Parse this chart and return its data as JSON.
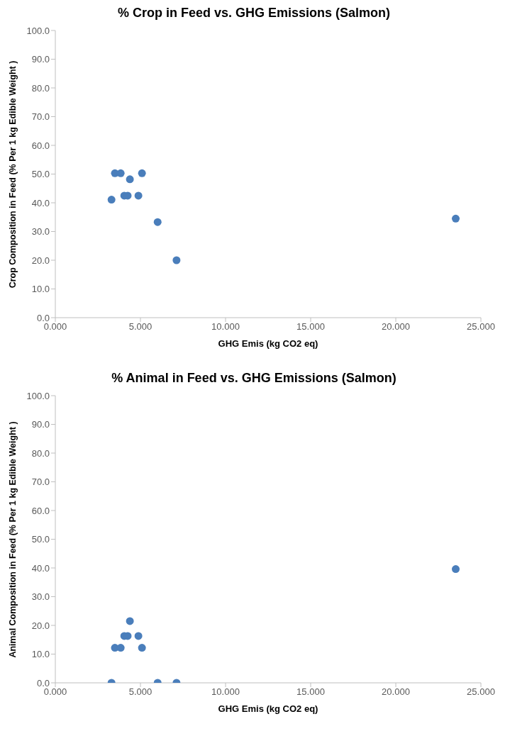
{
  "chart_data": [
    {
      "type": "scatter",
      "title": "% Crop in Feed vs. GHG Emissions (Salmon)",
      "xlabel": "GHG Emis (kg CO2 eq)",
      "ylabel": "Crop Composition in Feed (% Per 1 kg Edible Weight )",
      "x": [
        3.3,
        3.5,
        3.84,
        4.05,
        4.25,
        4.38,
        4.88,
        5.09,
        6.01,
        7.12,
        23.52
      ],
      "series": [
        {
          "color": "#4a7ebb",
          "values": [
            41.1,
            50.3,
            50.3,
            42.5,
            42.5,
            48.2,
            42.5,
            50.3,
            33.3,
            20.0,
            34.5
          ]
        }
      ],
      "xlim": [
        0,
        25
      ],
      "xticks": [
        {
          "value": 0,
          "label": "0.000"
        },
        {
          "value": 5,
          "label": "5.000"
        },
        {
          "value": 10,
          "label": "10.000"
        },
        {
          "value": 15,
          "label": "15.000"
        },
        {
          "value": 20,
          "label": "20.000"
        },
        {
          "value": 25,
          "label": "25.000"
        }
      ],
      "ylim": [
        0,
        100
      ],
      "yticks": [
        {
          "value": 0,
          "label": "0.0"
        },
        {
          "value": 10,
          "label": "10.0"
        },
        {
          "value": 20,
          "label": "20.0"
        },
        {
          "value": 30,
          "label": "30.0"
        },
        {
          "value": 40,
          "label": "40.0"
        },
        {
          "value": 50,
          "label": "50.0"
        },
        {
          "value": 60,
          "label": "60.0"
        },
        {
          "value": 70,
          "label": "70.0"
        },
        {
          "value": 80,
          "label": "80.0"
        },
        {
          "value": 90,
          "label": "90.0"
        },
        {
          "value": 100,
          "label": "100.0"
        }
      ],
      "grid": false,
      "marker": "circle"
    },
    {
      "type": "scatter",
      "title": "% Animal in Feed vs. GHG Emissions (Salmon)",
      "xlabel": "GHG Emis (kg CO2 eq)",
      "ylabel": "Animal Composition in Feed (% Per 1 kg Edible Weight )",
      "x": [
        3.3,
        3.5,
        3.84,
        4.05,
        4.25,
        4.38,
        4.88,
        5.09,
        6.01,
        7.12,
        23.52
      ],
      "series": [
        {
          "color": "#4a7ebb",
          "values": [
            0,
            12.2,
            12.2,
            16.3,
            16.3,
            21.5,
            16.3,
            12.2,
            0,
            0,
            39.6
          ]
        }
      ],
      "xlim": [
        0,
        25
      ],
      "xticks": [
        {
          "value": 0,
          "label": "0.000"
        },
        {
          "value": 5,
          "label": "5.000"
        },
        {
          "value": 10,
          "label": "10.000"
        },
        {
          "value": 15,
          "label": "15.000"
        },
        {
          "value": 20,
          "label": "20.000"
        },
        {
          "value": 25,
          "label": "25.000"
        }
      ],
      "ylim": [
        0,
        100
      ],
      "yticks": [
        {
          "value": 0,
          "label": "0.0"
        },
        {
          "value": 10,
          "label": "10.0"
        },
        {
          "value": 20,
          "label": "20.0"
        },
        {
          "value": 30,
          "label": "30.0"
        },
        {
          "value": 40,
          "label": "40.0"
        },
        {
          "value": 50,
          "label": "50.0"
        },
        {
          "value": 60,
          "label": "60.0"
        },
        {
          "value": 70,
          "label": "70.0"
        },
        {
          "value": 80,
          "label": "80.0"
        },
        {
          "value": 90,
          "label": "90.0"
        },
        {
          "value": 100,
          "label": "100.0"
        }
      ],
      "grid": false,
      "marker": "circle"
    }
  ]
}
